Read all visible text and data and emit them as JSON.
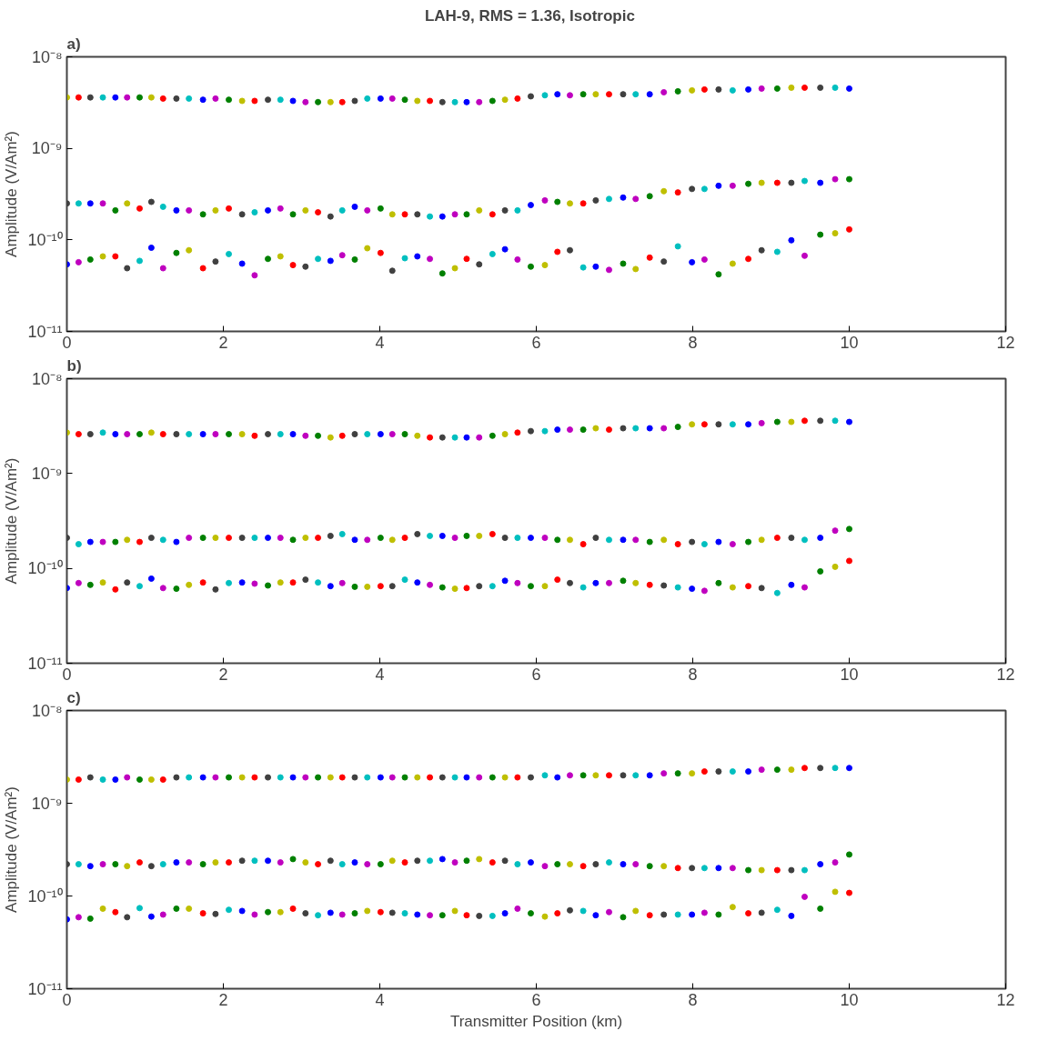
{
  "chart_data": [
    {
      "type": "scatter",
      "title": "LAH-9,  RMS = 1.36,   Isotropic",
      "ylabel": "Amplitude (V/Am²)",
      "annotations": [
        "a)"
      ],
      "log": true,
      "marker": "circle",
      "xlim": [
        0,
        12
      ],
      "xticks": [
        0,
        2,
        4,
        6,
        8,
        10,
        12
      ],
      "ylim": [
        1e-11,
        1e-08
      ],
      "yticks": [
        {
          "value": 1e-11,
          "label": "10⁻¹¹"
        },
        {
          "value": 1e-10,
          "label": "10⁻¹⁰"
        },
        {
          "value": 1e-09,
          "label": "10⁻⁹"
        },
        {
          "value": 1e-08,
          "label": "10⁻⁸"
        }
      ],
      "x": [
        0,
        0.15,
        0.3,
        0.46,
        0.62,
        0.77,
        0.93,
        1.08,
        1.23,
        1.4,
        1.56,
        1.74,
        1.9,
        2.07,
        2.24,
        2.4,
        2.57,
        2.73,
        2.89,
        3.05,
        3.21,
        3.37,
        3.52,
        3.68,
        3.84,
        4.01,
        4.16,
        4.32,
        4.48,
        4.64,
        4.8,
        4.96,
        5.11,
        5.27,
        5.44,
        5.6,
        5.76,
        5.93,
        6.11,
        6.27,
        6.43,
        6.6,
        6.76,
        6.93,
        7.11,
        7.27,
        7.45,
        7.63,
        7.81,
        7.99,
        8.15,
        8.33,
        8.51,
        8.71,
        8.88,
        9.08,
        9.26,
        9.43,
        9.63,
        9.82,
        10
      ],
      "series": [
        {
          "values": [
            3.6e-09,
            3.6e-09,
            3.6e-09,
            3.6e-09,
            3.6e-09,
            3.6e-09,
            3.6e-09,
            3.6e-09,
            3.5e-09,
            3.5e-09,
            3.5e-09,
            3.4e-09,
            3.5e-09,
            3.4e-09,
            3.3e-09,
            3.3e-09,
            3.4e-09,
            3.4e-09,
            3.3e-09,
            3.2e-09,
            3.2e-09,
            3.2e-09,
            3.2e-09,
            3.3e-09,
            3.5e-09,
            3.5e-09,
            3.5e-09,
            3.4e-09,
            3.3e-09,
            3.3e-09,
            3.2e-09,
            3.2e-09,
            3.2e-09,
            3.2e-09,
            3.3e-09,
            3.4e-09,
            3.5e-09,
            3.7e-09,
            3.8e-09,
            3.9e-09,
            3.8e-09,
            3.9e-09,
            3.9e-09,
            3.9e-09,
            3.9e-09,
            3.9e-09,
            3.9e-09,
            4.1e-09,
            4.2e-09,
            4.3e-09,
            4.4e-09,
            4.4e-09,
            4.3e-09,
            4.4e-09,
            4.5e-09,
            4.5e-09,
            4.6e-09,
            4.6e-09,
            4.6e-09,
            4.6e-09,
            4.5e-09
          ],
          "colors": [
            "#bfbf00",
            "#ff0000",
            "#404040",
            "#00bfbf",
            "#0000ff",
            "#bf00bf",
            "#008000",
            "#bfbf00",
            "#ff0000",
            "#404040",
            "#00bfbf",
            "#0000ff",
            "#bf00bf",
            "#008000",
            "#bfbf00",
            "#ff0000",
            "#404040",
            "#00bfbf",
            "#0000ff",
            "#bf00bf",
            "#008000",
            "#bfbf00",
            "#ff0000",
            "#404040",
            "#00bfbf",
            "#0000ff",
            "#bf00bf",
            "#008000",
            "#bfbf00",
            "#ff0000",
            "#404040",
            "#00bfbf",
            "#0000ff",
            "#bf00bf",
            "#008000",
            "#bfbf00",
            "#ff0000",
            "#404040",
            "#00bfbf",
            "#0000ff",
            "#bf00bf",
            "#008000",
            "#bfbf00",
            "#ff0000",
            "#404040",
            "#00bfbf",
            "#0000ff",
            "#bf00bf",
            "#008000",
            "#bfbf00",
            "#ff0000",
            "#404040",
            "#00bfbf",
            "#0000ff",
            "#bf00bf",
            "#008000",
            "#bfbf00",
            "#ff0000",
            "#404040",
            "#00bfbf",
            "#0000ff"
          ]
        },
        {
          "values": [
            2.5e-10,
            2.5e-10,
            2.5e-10,
            2.5e-10,
            2.1e-10,
            2.5e-10,
            2.2e-10,
            2.6e-10,
            2.3e-10,
            2.1e-10,
            2.1e-10,
            1.9e-10,
            2.1e-10,
            2.2e-10,
            1.9e-10,
            2e-10,
            2.1e-10,
            2.2e-10,
            1.9e-10,
            2.1e-10,
            2e-10,
            1.8e-10,
            2.1e-10,
            2.3e-10,
            2.1e-10,
            2.2e-10,
            1.9e-10,
            1.9e-10,
            1.9e-10,
            1.8e-10,
            1.8e-10,
            1.9e-10,
            1.9e-10,
            2.1e-10,
            1.9e-10,
            2.1e-10,
            2.1e-10,
            2.4e-10,
            2.7e-10,
            2.6e-10,
            2.5e-10,
            2.5e-10,
            2.7e-10,
            2.8e-10,
            2.9e-10,
            2.8e-10,
            3e-10,
            3.4e-10,
            3.3e-10,
            3.6e-10,
            3.6e-10,
            3.9e-10,
            3.9e-10,
            4.1e-10,
            4.2e-10,
            4.2e-10,
            4.2e-10,
            4.4e-10,
            4.2e-10,
            4.6e-10,
            4.6e-10
          ],
          "colors": [
            "#404040",
            "#00bfbf",
            "#0000ff",
            "#bf00bf",
            "#008000",
            "#bfbf00",
            "#ff0000",
            "#404040",
            "#00bfbf",
            "#0000ff",
            "#bf00bf",
            "#008000",
            "#bfbf00",
            "#ff0000",
            "#404040",
            "#00bfbf",
            "#0000ff",
            "#bf00bf",
            "#008000",
            "#bfbf00",
            "#ff0000",
            "#404040",
            "#00bfbf",
            "#0000ff",
            "#bf00bf",
            "#008000",
            "#bfbf00",
            "#ff0000",
            "#404040",
            "#00bfbf",
            "#0000ff",
            "#bf00bf",
            "#008000",
            "#bfbf00",
            "#ff0000",
            "#404040",
            "#00bfbf",
            "#0000ff",
            "#bf00bf",
            "#008000",
            "#bfbf00",
            "#ff0000",
            "#404040",
            "#00bfbf",
            "#0000ff",
            "#bf00bf",
            "#008000",
            "#bfbf00",
            "#ff0000",
            "#404040",
            "#00bfbf",
            "#0000ff",
            "#bf00bf",
            "#008000",
            "#bfbf00",
            "#ff0000",
            "#404040",
            "#00bfbf",
            "#0000ff",
            "#bf00bf",
            "#008000"
          ]
        },
        {
          "values": [
            5.4e-11,
            5.7e-11,
            6.1e-11,
            6.6e-11,
            6.6e-11,
            4.9e-11,
            5.9e-11,
            8.2e-11,
            4.9e-11,
            7.2e-11,
            7.7e-11,
            4.9e-11,
            5.8e-11,
            7e-11,
            5.5e-11,
            4.1e-11,
            6.2e-11,
            6.6e-11,
            5.3e-11,
            5.1e-11,
            6.2e-11,
            5.9e-11,
            6.8e-11,
            6.1e-11,
            8.1e-11,
            7.2e-11,
            4.6e-11,
            6.3e-11,
            6.6e-11,
            6.2e-11,
            4.3e-11,
            4.9e-11,
            6.2e-11,
            5.4e-11,
            7e-11,
            7.9e-11,
            6.1e-11,
            5.1e-11,
            5.3e-11,
            7.4e-11,
            7.7e-11,
            5e-11,
            5.1e-11,
            4.7e-11,
            5.5e-11,
            4.8e-11,
            6.4e-11,
            5.8e-11,
            8.5e-11,
            5.7e-11,
            6.1e-11,
            4.2e-11,
            5.5e-11,
            6.2e-11,
            7.7e-11,
            7.4e-11,
            9.9e-11,
            6.7e-11,
            1.14e-10,
            1.18e-10,
            1.3e-10
          ],
          "colors": [
            "#0000ff",
            "#bf00bf",
            "#008000",
            "#bfbf00",
            "#ff0000",
            "#404040",
            "#00bfbf",
            "#0000ff",
            "#bf00bf",
            "#008000",
            "#bfbf00",
            "#ff0000",
            "#404040",
            "#00bfbf",
            "#0000ff",
            "#bf00bf",
            "#008000",
            "#bfbf00",
            "#ff0000",
            "#404040",
            "#00bfbf",
            "#0000ff",
            "#bf00bf",
            "#008000",
            "#bfbf00",
            "#ff0000",
            "#404040",
            "#00bfbf",
            "#0000ff",
            "#bf00bf",
            "#008000",
            "#bfbf00",
            "#ff0000",
            "#404040",
            "#00bfbf",
            "#0000ff",
            "#bf00bf",
            "#008000",
            "#bfbf00",
            "#ff0000",
            "#404040",
            "#00bfbf",
            "#0000ff",
            "#bf00bf",
            "#008000",
            "#bfbf00",
            "#ff0000",
            "#404040",
            "#00bfbf",
            "#0000ff",
            "#bf00bf",
            "#008000",
            "#bfbf00",
            "#ff0000",
            "#404040",
            "#00bfbf",
            "#0000ff",
            "#bf00bf",
            "#008000",
            "#bfbf00",
            "#ff0000"
          ]
        }
      ]
    },
    {
      "type": "scatter",
      "ylabel": "Amplitude (V/Am²)",
      "annotations": [
        "b)"
      ],
      "log": true,
      "marker": "circle",
      "xlim": [
        0,
        12
      ],
      "xticks": [
        0,
        2,
        4,
        6,
        8,
        10,
        12
      ],
      "ylim": [
        1e-11,
        1e-08
      ],
      "yticks": [
        {
          "value": 1e-11,
          "label": "10⁻¹¹"
        },
        {
          "value": 1e-10,
          "label": "10⁻¹⁰"
        },
        {
          "value": 1e-09,
          "label": "10⁻⁹"
        },
        {
          "value": 1e-08,
          "label": "10⁻⁸"
        }
      ],
      "x": [
        0,
        0.15,
        0.3,
        0.46,
        0.62,
        0.77,
        0.93,
        1.08,
        1.23,
        1.4,
        1.56,
        1.74,
        1.9,
        2.07,
        2.24,
        2.4,
        2.57,
        2.73,
        2.89,
        3.05,
        3.21,
        3.37,
        3.52,
        3.68,
        3.84,
        4.01,
        4.16,
        4.32,
        4.48,
        4.64,
        4.8,
        4.96,
        5.11,
        5.27,
        5.44,
        5.6,
        5.76,
        5.93,
        6.11,
        6.27,
        6.43,
        6.6,
        6.76,
        6.93,
        7.11,
        7.27,
        7.45,
        7.63,
        7.81,
        7.99,
        8.15,
        8.33,
        8.51,
        8.71,
        8.88,
        9.08,
        9.26,
        9.43,
        9.63,
        9.82,
        10
      ],
      "series": [
        {
          "values": [
            2.7e-09,
            2.6e-09,
            2.6e-09,
            2.7e-09,
            2.6e-09,
            2.6e-09,
            2.6e-09,
            2.7e-09,
            2.6e-09,
            2.6e-09,
            2.6e-09,
            2.6e-09,
            2.6e-09,
            2.6e-09,
            2.6e-09,
            2.5e-09,
            2.6e-09,
            2.6e-09,
            2.6e-09,
            2.5e-09,
            2.5e-09,
            2.4e-09,
            2.5e-09,
            2.6e-09,
            2.6e-09,
            2.6e-09,
            2.6e-09,
            2.6e-09,
            2.5e-09,
            2.4e-09,
            2.4e-09,
            2.4e-09,
            2.4e-09,
            2.4e-09,
            2.5e-09,
            2.6e-09,
            2.7e-09,
            2.8e-09,
            2.8e-09,
            2.9e-09,
            2.9e-09,
            2.9e-09,
            3e-09,
            2.9e-09,
            3e-09,
            3e-09,
            3e-09,
            3e-09,
            3.1e-09,
            3.3e-09,
            3.3e-09,
            3.3e-09,
            3.3e-09,
            3.3e-09,
            3.4e-09,
            3.5e-09,
            3.5e-09,
            3.6e-09,
            3.6e-09,
            3.6e-09,
            3.5e-09
          ],
          "colors": [
            "#bfbf00",
            "#ff0000",
            "#404040",
            "#00bfbf",
            "#0000ff",
            "#bf00bf",
            "#008000",
            "#bfbf00",
            "#ff0000",
            "#404040",
            "#00bfbf",
            "#0000ff",
            "#bf00bf",
            "#008000",
            "#bfbf00",
            "#ff0000",
            "#404040",
            "#00bfbf",
            "#0000ff",
            "#bf00bf",
            "#008000",
            "#bfbf00",
            "#ff0000",
            "#404040",
            "#00bfbf",
            "#0000ff",
            "#bf00bf",
            "#008000",
            "#bfbf00",
            "#ff0000",
            "#404040",
            "#00bfbf",
            "#0000ff",
            "#bf00bf",
            "#008000",
            "#bfbf00",
            "#ff0000",
            "#404040",
            "#00bfbf",
            "#0000ff",
            "#bf00bf",
            "#008000",
            "#bfbf00",
            "#ff0000",
            "#404040",
            "#00bfbf",
            "#0000ff",
            "#bf00bf",
            "#008000",
            "#bfbf00",
            "#ff0000",
            "#404040",
            "#00bfbf",
            "#0000ff",
            "#bf00bf",
            "#008000",
            "#bfbf00",
            "#ff0000",
            "#404040",
            "#00bfbf",
            "#0000ff"
          ]
        },
        {
          "values": [
            2.1e-10,
            1.8e-10,
            1.9e-10,
            1.9e-10,
            1.9e-10,
            2e-10,
            1.9e-10,
            2.1e-10,
            2e-10,
            1.9e-10,
            2.1e-10,
            2.1e-10,
            2.1e-10,
            2.1e-10,
            2.1e-10,
            2.1e-10,
            2.1e-10,
            2.1e-10,
            2e-10,
            2.1e-10,
            2.1e-10,
            2.2e-10,
            2.3e-10,
            2e-10,
            2e-10,
            2.1e-10,
            2e-10,
            2.1e-10,
            2.3e-10,
            2.2e-10,
            2.2e-10,
            2.1e-10,
            2.2e-10,
            2.2e-10,
            2.3e-10,
            2.1e-10,
            2.1e-10,
            2.1e-10,
            2.1e-10,
            2e-10,
            2e-10,
            1.8e-10,
            2.1e-10,
            2e-10,
            2e-10,
            2e-10,
            1.9e-10,
            2e-10,
            1.8e-10,
            1.9e-10,
            1.8e-10,
            1.9e-10,
            1.8e-10,
            1.9e-10,
            2e-10,
            2.1e-10,
            2.1e-10,
            2e-10,
            2.1e-10,
            2.5e-10,
            2.6e-10
          ],
          "colors": [
            "#404040",
            "#00bfbf",
            "#0000ff",
            "#bf00bf",
            "#008000",
            "#bfbf00",
            "#ff0000",
            "#404040",
            "#00bfbf",
            "#0000ff",
            "#bf00bf",
            "#008000",
            "#bfbf00",
            "#ff0000",
            "#404040",
            "#00bfbf",
            "#0000ff",
            "#bf00bf",
            "#008000",
            "#bfbf00",
            "#ff0000",
            "#404040",
            "#00bfbf",
            "#0000ff",
            "#bf00bf",
            "#008000",
            "#bfbf00",
            "#ff0000",
            "#404040",
            "#00bfbf",
            "#0000ff",
            "#bf00bf",
            "#008000",
            "#bfbf00",
            "#ff0000",
            "#404040",
            "#00bfbf",
            "#0000ff",
            "#bf00bf",
            "#008000",
            "#bfbf00",
            "#ff0000",
            "#404040",
            "#00bfbf",
            "#0000ff",
            "#bf00bf",
            "#008000",
            "#bfbf00",
            "#ff0000",
            "#404040",
            "#00bfbf",
            "#0000ff",
            "#bf00bf",
            "#008000",
            "#bfbf00",
            "#ff0000",
            "#404040",
            "#00bfbf",
            "#0000ff",
            "#bf00bf",
            "#008000"
          ]
        },
        {
          "values": [
            6.2e-11,
            7e-11,
            6.7e-11,
            7.1e-11,
            6e-11,
            7.1e-11,
            6.5e-11,
            7.8e-11,
            6.2e-11,
            6.1e-11,
            6.7e-11,
            7.1e-11,
            6e-11,
            7e-11,
            7.1e-11,
            6.9e-11,
            6.6e-11,
            7.1e-11,
            7.1e-11,
            7.6e-11,
            7.1e-11,
            6.5e-11,
            7e-11,
            6.4e-11,
            6.4e-11,
            6.5e-11,
            6.5e-11,
            7.6e-11,
            7.1e-11,
            6.7e-11,
            6.3e-11,
            6.1e-11,
            6.2e-11,
            6.5e-11,
            6.5e-11,
            7.4e-11,
            7e-11,
            6.5e-11,
            6.5e-11,
            7.6e-11,
            7e-11,
            6.3e-11,
            7e-11,
            7e-11,
            7.4e-11,
            7e-11,
            6.7e-11,
            6.6e-11,
            6.3e-11,
            6.1e-11,
            5.8e-11,
            7e-11,
            6.3e-11,
            6.5e-11,
            6.2e-11,
            5.5e-11,
            6.7e-11,
            6.3e-11,
            9.3e-11,
            1.04e-10,
            1.2e-10
          ],
          "colors": [
            "#0000ff",
            "#bf00bf",
            "#008000",
            "#bfbf00",
            "#ff0000",
            "#404040",
            "#00bfbf",
            "#0000ff",
            "#bf00bf",
            "#008000",
            "#bfbf00",
            "#ff0000",
            "#404040",
            "#00bfbf",
            "#0000ff",
            "#bf00bf",
            "#008000",
            "#bfbf00",
            "#ff0000",
            "#404040",
            "#00bfbf",
            "#0000ff",
            "#bf00bf",
            "#008000",
            "#bfbf00",
            "#ff0000",
            "#404040",
            "#00bfbf",
            "#0000ff",
            "#bf00bf",
            "#008000",
            "#bfbf00",
            "#ff0000",
            "#404040",
            "#00bfbf",
            "#0000ff",
            "#bf00bf",
            "#008000",
            "#bfbf00",
            "#ff0000",
            "#404040",
            "#00bfbf",
            "#0000ff",
            "#bf00bf",
            "#008000",
            "#bfbf00",
            "#ff0000",
            "#404040",
            "#00bfbf",
            "#0000ff",
            "#bf00bf",
            "#008000",
            "#bfbf00",
            "#ff0000",
            "#404040",
            "#00bfbf",
            "#0000ff",
            "#bf00bf",
            "#008000",
            "#bfbf00",
            "#ff0000"
          ]
        }
      ]
    },
    {
      "type": "scatter",
      "xlabel": "Transmitter Position (km)",
      "ylabel": "Amplitude (V/Am²)",
      "annotations": [
        "c)"
      ],
      "log": true,
      "marker": "circle",
      "xlim": [
        0,
        12
      ],
      "xticks": [
        0,
        2,
        4,
        6,
        8,
        10,
        12
      ],
      "ylim": [
        1e-11,
        1e-08
      ],
      "yticks": [
        {
          "value": 1e-11,
          "label": "10⁻¹¹"
        },
        {
          "value": 1e-10,
          "label": "10⁻¹⁰"
        },
        {
          "value": 1e-09,
          "label": "10⁻⁹"
        },
        {
          "value": 1e-08,
          "label": "10⁻⁸"
        }
      ],
      "x": [
        0,
        0.15,
        0.3,
        0.46,
        0.62,
        0.77,
        0.93,
        1.08,
        1.23,
        1.4,
        1.56,
        1.74,
        1.9,
        2.07,
        2.24,
        2.4,
        2.57,
        2.73,
        2.89,
        3.05,
        3.21,
        3.37,
        3.52,
        3.68,
        3.84,
        4.01,
        4.16,
        4.32,
        4.48,
        4.64,
        4.8,
        4.96,
        5.11,
        5.27,
        5.44,
        5.6,
        5.76,
        5.93,
        6.11,
        6.27,
        6.43,
        6.6,
        6.76,
        6.93,
        7.11,
        7.27,
        7.45,
        7.63,
        7.81,
        7.99,
        8.15,
        8.33,
        8.51,
        8.71,
        8.88,
        9.08,
        9.26,
        9.43,
        9.63,
        9.82,
        10
      ],
      "series": [
        {
          "values": [
            1.8e-09,
            1.8e-09,
            1.9e-09,
            1.8e-09,
            1.8e-09,
            1.9e-09,
            1.8e-09,
            1.8e-09,
            1.8e-09,
            1.9e-09,
            1.9e-09,
            1.9e-09,
            1.9e-09,
            1.9e-09,
            1.9e-09,
            1.9e-09,
            1.9e-09,
            1.9e-09,
            1.9e-09,
            1.9e-09,
            1.9e-09,
            1.9e-09,
            1.9e-09,
            1.9e-09,
            1.9e-09,
            1.9e-09,
            1.9e-09,
            1.9e-09,
            1.9e-09,
            1.9e-09,
            1.9e-09,
            1.9e-09,
            1.9e-09,
            1.9e-09,
            1.9e-09,
            1.9e-09,
            1.9e-09,
            1.9e-09,
            2e-09,
            1.9e-09,
            2e-09,
            2e-09,
            2e-09,
            2e-09,
            2e-09,
            2e-09,
            2e-09,
            2.1e-09,
            2.1e-09,
            2.1e-09,
            2.2e-09,
            2.2e-09,
            2.2e-09,
            2.2e-09,
            2.3e-09,
            2.3e-09,
            2.3e-09,
            2.4e-09,
            2.4e-09,
            2.4e-09,
            2.4e-09
          ],
          "colors": [
            "#bfbf00",
            "#ff0000",
            "#404040",
            "#00bfbf",
            "#0000ff",
            "#bf00bf",
            "#008000",
            "#bfbf00",
            "#ff0000",
            "#404040",
            "#00bfbf",
            "#0000ff",
            "#bf00bf",
            "#008000",
            "#bfbf00",
            "#ff0000",
            "#404040",
            "#00bfbf",
            "#0000ff",
            "#bf00bf",
            "#008000",
            "#bfbf00",
            "#ff0000",
            "#404040",
            "#00bfbf",
            "#0000ff",
            "#bf00bf",
            "#008000",
            "#bfbf00",
            "#ff0000",
            "#404040",
            "#00bfbf",
            "#0000ff",
            "#bf00bf",
            "#008000",
            "#bfbf00",
            "#ff0000",
            "#404040",
            "#00bfbf",
            "#0000ff",
            "#bf00bf",
            "#008000",
            "#bfbf00",
            "#ff0000",
            "#404040",
            "#00bfbf",
            "#0000ff",
            "#bf00bf",
            "#008000",
            "#bfbf00",
            "#ff0000",
            "#404040",
            "#00bfbf",
            "#0000ff",
            "#bf00bf",
            "#008000",
            "#bfbf00",
            "#ff0000",
            "#404040",
            "#00bfbf",
            "#0000ff"
          ]
        },
        {
          "values": [
            2.2e-10,
            2.2e-10,
            2.1e-10,
            2.2e-10,
            2.2e-10,
            2.1e-10,
            2.3e-10,
            2.1e-10,
            2.2e-10,
            2.3e-10,
            2.3e-10,
            2.2e-10,
            2.3e-10,
            2.3e-10,
            2.4e-10,
            2.4e-10,
            2.4e-10,
            2.3e-10,
            2.5e-10,
            2.3e-10,
            2.2e-10,
            2.4e-10,
            2.2e-10,
            2.3e-10,
            2.2e-10,
            2.2e-10,
            2.4e-10,
            2.3e-10,
            2.4e-10,
            2.4e-10,
            2.5e-10,
            2.3e-10,
            2.4e-10,
            2.5e-10,
            2.3e-10,
            2.4e-10,
            2.2e-10,
            2.3e-10,
            2.1e-10,
            2.2e-10,
            2.2e-10,
            2.1e-10,
            2.2e-10,
            2.3e-10,
            2.2e-10,
            2.2e-10,
            2.1e-10,
            2.1e-10,
            2e-10,
            2e-10,
            2e-10,
            2e-10,
            2e-10,
            1.9e-10,
            1.9e-10,
            1.9e-10,
            1.9e-10,
            1.9e-10,
            2.2e-10,
            2.3e-10,
            2.8e-10
          ],
          "colors": [
            "#404040",
            "#00bfbf",
            "#0000ff",
            "#bf00bf",
            "#008000",
            "#bfbf00",
            "#ff0000",
            "#404040",
            "#00bfbf",
            "#0000ff",
            "#bf00bf",
            "#008000",
            "#bfbf00",
            "#ff0000",
            "#404040",
            "#00bfbf",
            "#0000ff",
            "#bf00bf",
            "#008000",
            "#bfbf00",
            "#ff0000",
            "#404040",
            "#00bfbf",
            "#0000ff",
            "#bf00bf",
            "#008000",
            "#bfbf00",
            "#ff0000",
            "#404040",
            "#00bfbf",
            "#0000ff",
            "#bf00bf",
            "#008000",
            "#bfbf00",
            "#ff0000",
            "#404040",
            "#00bfbf",
            "#0000ff",
            "#bf00bf",
            "#008000",
            "#bfbf00",
            "#ff0000",
            "#404040",
            "#00bfbf",
            "#0000ff",
            "#bf00bf",
            "#008000",
            "#bfbf00",
            "#ff0000",
            "#404040",
            "#00bfbf",
            "#0000ff",
            "#bf00bf",
            "#008000",
            "#bfbf00",
            "#ff0000",
            "#404040",
            "#00bfbf",
            "#0000ff",
            "#bf00bf",
            "#008000"
          ]
        },
        {
          "values": [
            5.6e-11,
            5.9e-11,
            5.7e-11,
            7.3e-11,
            6.7e-11,
            5.9e-11,
            7.4e-11,
            6e-11,
            6.3e-11,
            7.3e-11,
            7.3e-11,
            6.5e-11,
            6.4e-11,
            7.1e-11,
            6.9e-11,
            6.3e-11,
            6.7e-11,
            6.7e-11,
            7.3e-11,
            6.5e-11,
            6.2e-11,
            6.6e-11,
            6.3e-11,
            6.5e-11,
            6.9e-11,
            6.7e-11,
            6.6e-11,
            6.5e-11,
            6.3e-11,
            6.2e-11,
            6.2e-11,
            6.9e-11,
            6.2e-11,
            6.1e-11,
            6.1e-11,
            6.5e-11,
            7.3e-11,
            6.5e-11,
            6e-11,
            6.5e-11,
            7e-11,
            6.9e-11,
            6.2e-11,
            6.7e-11,
            5.9e-11,
            6.9e-11,
            6.2e-11,
            6.3e-11,
            6.3e-11,
            6.3e-11,
            6.6e-11,
            6.3e-11,
            7.6e-11,
            6.5e-11,
            6.6e-11,
            7.1e-11,
            6.1e-11,
            9.8e-11,
            7.3e-11,
            1.11e-10,
            1.08e-10
          ],
          "colors": [
            "#0000ff",
            "#bf00bf",
            "#008000",
            "#bfbf00",
            "#ff0000",
            "#404040",
            "#00bfbf",
            "#0000ff",
            "#bf00bf",
            "#008000",
            "#bfbf00",
            "#ff0000",
            "#404040",
            "#00bfbf",
            "#0000ff",
            "#bf00bf",
            "#008000",
            "#bfbf00",
            "#ff0000",
            "#404040",
            "#00bfbf",
            "#0000ff",
            "#bf00bf",
            "#008000",
            "#bfbf00",
            "#ff0000",
            "#404040",
            "#00bfbf",
            "#0000ff",
            "#bf00bf",
            "#008000",
            "#bfbf00",
            "#ff0000",
            "#404040",
            "#00bfbf",
            "#0000ff",
            "#bf00bf",
            "#008000",
            "#bfbf00",
            "#ff0000",
            "#404040",
            "#00bfbf",
            "#0000ff",
            "#bf00bf",
            "#008000",
            "#bfbf00",
            "#ff0000",
            "#404040",
            "#00bfbf",
            "#0000ff",
            "#bf00bf",
            "#008000",
            "#bfbf00",
            "#ff0000",
            "#404040",
            "#00bfbf",
            "#0000ff",
            "#bf00bf",
            "#008000",
            "#bfbf00",
            "#ff0000"
          ]
        }
      ]
    }
  ]
}
